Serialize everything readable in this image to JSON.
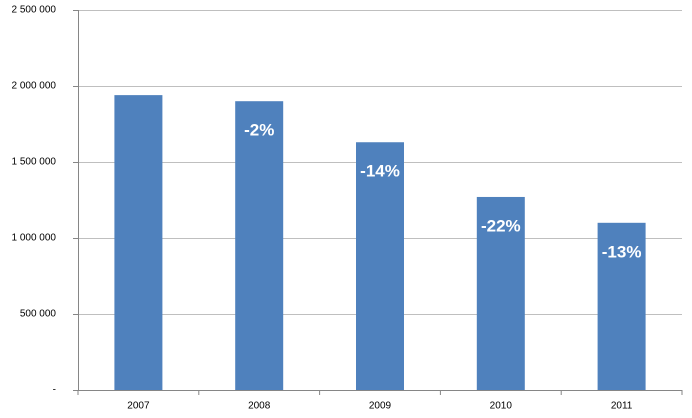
{
  "chart_data": {
    "type": "bar",
    "categories": [
      "2007",
      "2008",
      "2009",
      "2010",
      "2011"
    ],
    "values": [
      1940000,
      1900000,
      1630000,
      1270000,
      1100000
    ],
    "annotations": [
      null,
      "-2%",
      "-14%",
      "-22%",
      "-13%"
    ],
    "color": "#4f81bd",
    "ylim": [
      0,
      2500000
    ],
    "yticks": [
      {
        "value": 0,
        "label": "-"
      },
      {
        "value": 500000,
        "label": "500 000"
      },
      {
        "value": 1000000,
        "label": "1 000 000"
      },
      {
        "value": 1500000,
        "label": "1 500 000"
      },
      {
        "value": 2000000,
        "label": "2 000 000"
      },
      {
        "value": 2500000,
        "label": "2 500 000"
      }
    ],
    "grid": true
  }
}
